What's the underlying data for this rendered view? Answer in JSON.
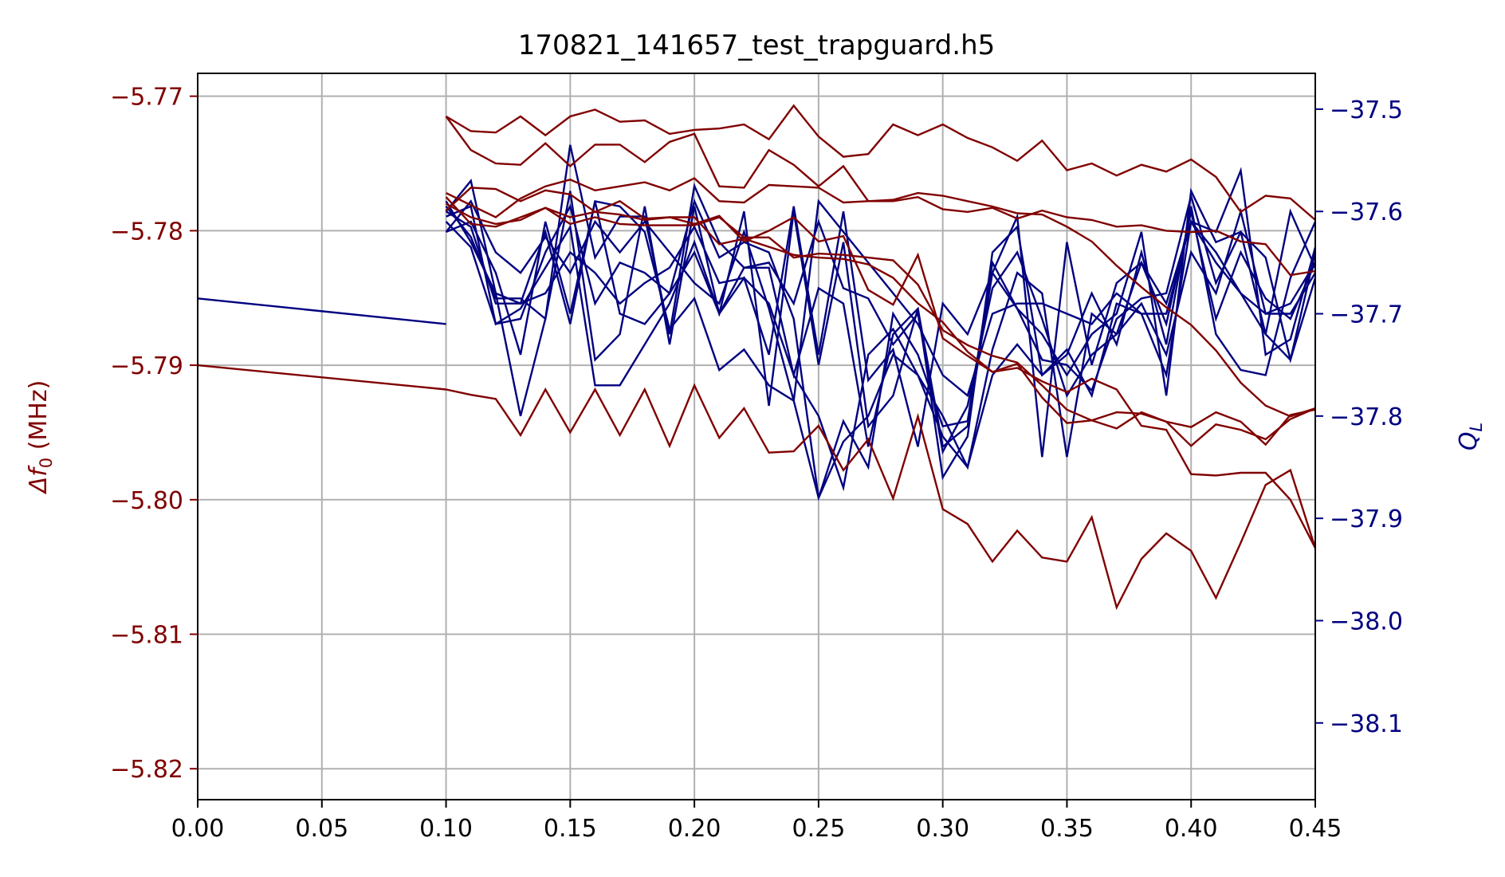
{
  "chart_data": {
    "type": "line",
    "title": "170821_141657_test_trapguard.h5",
    "xlim": [
      0.0,
      0.45
    ],
    "xticks": [
      0.0,
      0.05,
      0.1,
      0.15,
      0.2,
      0.25,
      0.3,
      0.35,
      0.4,
      0.45
    ],
    "xtick_labels": [
      "0.00",
      "0.05",
      "0.10",
      "0.15",
      "0.20",
      "0.25",
      "0.30",
      "0.35",
      "0.40",
      "0.45"
    ],
    "grid": true,
    "left_axis": {
      "label_prefix": "Δf",
      "label_sub": "0",
      "label_suffix": " (MHz)",
      "color": "#800000",
      "ylim": [
        -5.8223,
        -5.7683
      ],
      "ticks": [
        -5.77,
        -5.78,
        -5.79,
        -5.8,
        -5.81,
        -5.82
      ],
      "tick_labels": [
        "−5.77",
        "−5.78",
        "−5.79",
        "−5.80",
        "−5.81",
        "−5.82"
      ]
    },
    "right_axis": {
      "label_main": "Q",
      "label_sub": "L",
      "color": "#000080",
      "ylim": [
        -38.175,
        -37.465
      ],
      "ticks": [
        -37.5,
        -37.6,
        -37.7,
        -37.8,
        -37.9,
        -38.0,
        -38.1
      ],
      "tick_labels": [
        "−37.5",
        "−37.6",
        "−37.7",
        "−37.8",
        "−37.9",
        "−38.0",
        "−38.1"
      ]
    },
    "x": [
      0.1,
      0.11,
      0.12,
      0.13,
      0.14,
      0.15,
      0.16,
      0.17,
      0.18,
      0.19,
      0.2,
      0.21,
      0.22,
      0.23,
      0.24,
      0.25,
      0.26,
      0.27,
      0.28,
      0.29,
      0.3,
      0.31,
      0.32,
      0.33,
      0.34,
      0.35,
      0.36,
      0.37,
      0.38,
      0.39,
      0.4,
      0.41,
      0.42,
      0.43,
      0.44,
      0.45
    ],
    "df_series": [
      {
        "x": [
          0.0,
          0.1
        ],
        "values": [
          -5.79,
          -5.7918
        ]
      },
      {
        "values": [
          -5.7918,
          -5.7922,
          -5.7925,
          -5.7952,
          -5.7918,
          -5.795,
          -5.7918,
          -5.7952,
          -5.7918,
          -5.796,
          -5.7915,
          -5.7954,
          -5.7932,
          -5.7965,
          -5.7964,
          -5.7945,
          -5.7978,
          -5.7955,
          -5.7999,
          -5.7938,
          -5.8007,
          -5.8018,
          -5.8046,
          -5.8023,
          -5.8043,
          -5.8046,
          -5.8013,
          -5.808,
          -5.8044,
          -5.8025,
          -5.8038,
          -5.8073,
          -5.8032,
          -5.7989,
          -5.7978,
          -5.8036
        ]
      },
      {
        "values": [
          -5.7715,
          -5.7726,
          -5.7727,
          -5.7715,
          -5.7729,
          -5.7715,
          -5.771,
          -5.7719,
          -5.7718,
          -5.7728,
          -5.7725,
          -5.7724,
          -5.7721,
          -5.7732,
          -5.7707,
          -5.773,
          -5.7745,
          -5.7743,
          -5.7721,
          -5.7729,
          -5.7721,
          -5.7731,
          -5.7738,
          -5.7748,
          -5.7733,
          -5.7755,
          -5.775,
          -5.7759,
          -5.7751,
          -5.7756,
          -5.7747,
          -5.776,
          -5.7786,
          -5.7774,
          -5.7776,
          -5.7792
        ]
      },
      {
        "values": [
          -5.7715,
          -5.774,
          -5.775,
          -5.7751,
          -5.7735,
          -5.7752,
          -5.7736,
          -5.7736,
          -5.7749,
          -5.7734,
          -5.7728,
          -5.7767,
          -5.7768,
          -5.774,
          -5.7751,
          -5.7767,
          -5.7752,
          -5.7778,
          -5.7778,
          -5.7775,
          -5.7784,
          -5.7786,
          -5.7783,
          -5.7791,
          -5.7785,
          -5.779,
          -5.7792,
          -5.7797,
          -5.7796,
          -5.78,
          -5.7801,
          -5.78,
          -5.7808,
          -5.781,
          -5.7833,
          -5.783
        ]
      },
      {
        "values": [
          -5.7772,
          -5.7781,
          -5.779,
          -5.7776,
          -5.7767,
          -5.7762,
          -5.777,
          -5.7767,
          -5.7764,
          -5.777,
          -5.7761,
          -5.7778,
          -5.7779,
          -5.7766,
          -5.7767,
          -5.7768,
          -5.7779,
          -5.7778,
          -5.7777,
          -5.7772,
          -5.7774,
          -5.7778,
          -5.7782,
          -5.7787,
          -5.7788,
          -5.7797,
          -5.7808,
          -5.7826,
          -5.7842,
          -5.7857,
          -5.787,
          -5.7889,
          -5.7913,
          -5.793,
          -5.7938,
          -5.7932
        ]
      },
      {
        "values": [
          -5.7785,
          -5.7768,
          -5.7769,
          -5.7778,
          -5.777,
          -5.7773,
          -5.7786,
          -5.7778,
          -5.7791,
          -5.779,
          -5.7795,
          -5.7789,
          -5.7808,
          -5.78,
          -5.779,
          -5.7808,
          -5.7804,
          -5.7844,
          -5.7855,
          -5.7818,
          -5.788,
          -5.7893,
          -5.7905,
          -5.7899,
          -5.7924,
          -5.7943,
          -5.7941,
          -5.7935,
          -5.7936,
          -5.7942,
          -5.7946,
          -5.7935,
          -5.7942,
          -5.7959,
          -5.7937,
          -5.7933
        ]
      },
      {
        "values": [
          -5.7775,
          -5.7795,
          -5.7797,
          -5.779,
          -5.7783,
          -5.7795,
          -5.779,
          -5.7795,
          -5.7796,
          -5.7796,
          -5.7796,
          -5.779,
          -5.7805,
          -5.7805,
          -5.782,
          -5.7817,
          -5.7818,
          -5.782,
          -5.7822,
          -5.784,
          -5.7874,
          -5.7885,
          -5.7893,
          -5.7898,
          -5.7915,
          -5.7933,
          -5.7941,
          -5.7947,
          -5.7935,
          -5.7942,
          -5.796,
          -5.7944,
          -5.7948,
          -5.7955,
          -5.794,
          -5.7932
        ]
      },
      {
        "values": [
          -5.778,
          -5.779,
          -5.7795,
          -5.7792,
          -5.7783,
          -5.779,
          -5.7786,
          -5.7788,
          -5.7792,
          -5.779,
          -5.779,
          -5.781,
          -5.7806,
          -5.7812,
          -5.7818,
          -5.782,
          -5.7821,
          -5.7825,
          -5.7835,
          -5.7854,
          -5.7868,
          -5.789,
          -5.7905,
          -5.7902,
          -5.7912,
          -5.792,
          -5.791,
          -5.7918,
          -5.7945,
          -5.7948,
          -5.7981,
          -5.7982,
          -5.798,
          -5.798,
          -5.8,
          -5.8036
        ]
      }
    ],
    "q_series": [
      {
        "x": [
          0.0,
          0.1
        ],
        "values": [
          -37.685,
          -37.71
        ]
      },
      {
        "values": [
          -37.6,
          -37.57,
          -37.68,
          -37.8,
          -37.705,
          -37.58,
          -37.745,
          -37.72,
          -37.595,
          -37.73,
          -37.595,
          -37.7,
          -37.665,
          -37.74,
          -37.595,
          -37.74,
          -37.6,
          -37.765,
          -37.735,
          -37.83,
          -37.69,
          -37.72,
          -37.66,
          -37.695,
          -37.745,
          -37.75,
          -37.775,
          -37.705,
          -37.685,
          -37.68,
          -37.585,
          -37.67,
          -37.62,
          -37.645,
          -37.745,
          -37.665
        ]
      },
      {
        "values": [
          -37.59,
          -37.63,
          -37.68,
          -37.69,
          -37.62,
          -37.71,
          -37.59,
          -37.595,
          -37.62,
          -37.715,
          -37.685,
          -37.755,
          -37.735,
          -37.77,
          -37.785,
          -37.88,
          -37.825,
          -37.8,
          -37.74,
          -37.76,
          -37.8,
          -37.85,
          -37.76,
          -37.73,
          -37.76,
          -37.735,
          -37.78,
          -37.69,
          -37.7,
          -37.76,
          -37.61,
          -37.64,
          -37.68,
          -37.72,
          -37.745,
          -37.64
        ]
      },
      {
        "values": [
          -37.62,
          -37.61,
          -37.66,
          -37.74,
          -37.61,
          -37.7,
          -37.59,
          -37.7,
          -37.71,
          -37.68,
          -37.64,
          -37.7,
          -37.6,
          -37.79,
          -37.6,
          -37.75,
          -37.63,
          -37.81,
          -37.78,
          -37.695,
          -37.86,
          -37.82,
          -37.64,
          -37.615,
          -37.76,
          -37.74,
          -37.68,
          -37.73,
          -37.64,
          -37.73,
          -37.595,
          -37.72,
          -37.755,
          -37.76,
          -37.665,
          -37.61
        ]
      },
      {
        "values": [
          -37.595,
          -37.625,
          -37.685,
          -37.685,
          -37.705,
          -37.535,
          -37.645,
          -37.605,
          -37.605,
          -37.72,
          -37.575,
          -37.63,
          -37.655,
          -37.65,
          -37.69,
          -37.61,
          -37.675,
          -37.685,
          -37.73,
          -37.7,
          -37.835,
          -37.79,
          -37.675,
          -37.64,
          -37.705,
          -37.78,
          -37.74,
          -37.72,
          -37.65,
          -37.69,
          -37.61,
          -37.62,
          -37.56,
          -37.74,
          -37.725,
          -37.635
        ]
      },
      {
        "values": [
          -37.61,
          -37.635,
          -37.71,
          -37.705,
          -37.64,
          -37.595,
          -37.69,
          -37.65,
          -37.66,
          -37.68,
          -37.59,
          -37.645,
          -37.63,
          -37.64,
          -37.705,
          -37.88,
          -37.805,
          -37.85,
          -37.7,
          -37.74,
          -37.81,
          -37.805,
          -37.65,
          -37.695,
          -37.72,
          -37.76,
          -37.72,
          -37.7,
          -37.62,
          -37.78,
          -37.58,
          -37.63,
          -37.62,
          -37.72,
          -37.6,
          -37.655
        ]
      },
      {
        "values": [
          -37.605,
          -37.595,
          -37.71,
          -37.695,
          -37.655,
          -37.615,
          -37.77,
          -37.77,
          -37.73,
          -37.69,
          -37.63,
          -37.7,
          -37.655,
          -37.655,
          -37.76,
          -37.675,
          -37.69,
          -37.83,
          -37.72,
          -37.695,
          -37.83,
          -37.81,
          -37.66,
          -37.605,
          -37.84,
          -37.63,
          -37.75,
          -37.67,
          -37.65,
          -37.71,
          -37.6,
          -37.705,
          -37.64,
          -37.685,
          -37.705,
          -37.65
        ]
      },
      {
        "values": [
          -37.6,
          -37.615,
          -37.69,
          -37.69,
          -37.68,
          -37.64,
          -37.66,
          -37.69,
          -37.67,
          -37.655,
          -37.615,
          -37.67,
          -37.665,
          -37.69,
          -37.76,
          -37.8,
          -37.87,
          -37.74,
          -37.715,
          -37.76,
          -37.82,
          -37.85,
          -37.735,
          -37.66,
          -37.68,
          -37.84,
          -37.7,
          -37.72,
          -37.69,
          -37.74,
          -37.64,
          -37.68,
          -37.6,
          -37.7,
          -37.7,
          -37.66
        ]
      },
      {
        "values": [
          -37.62,
          -37.59,
          -37.64,
          -37.66,
          -37.625,
          -37.66,
          -37.61,
          -37.64,
          -37.61,
          -37.64,
          -37.67,
          -37.69,
          -37.62,
          -37.695,
          -37.785,
          -37.59,
          -37.62,
          -37.65,
          -37.68,
          -37.71,
          -37.76,
          -37.78,
          -37.7,
          -37.69,
          -37.69,
          -37.7,
          -37.71,
          -37.68,
          -37.7,
          -37.7,
          -37.61,
          -37.65,
          -37.68,
          -37.7,
          -37.69,
          -37.65
        ]
      }
    ]
  }
}
